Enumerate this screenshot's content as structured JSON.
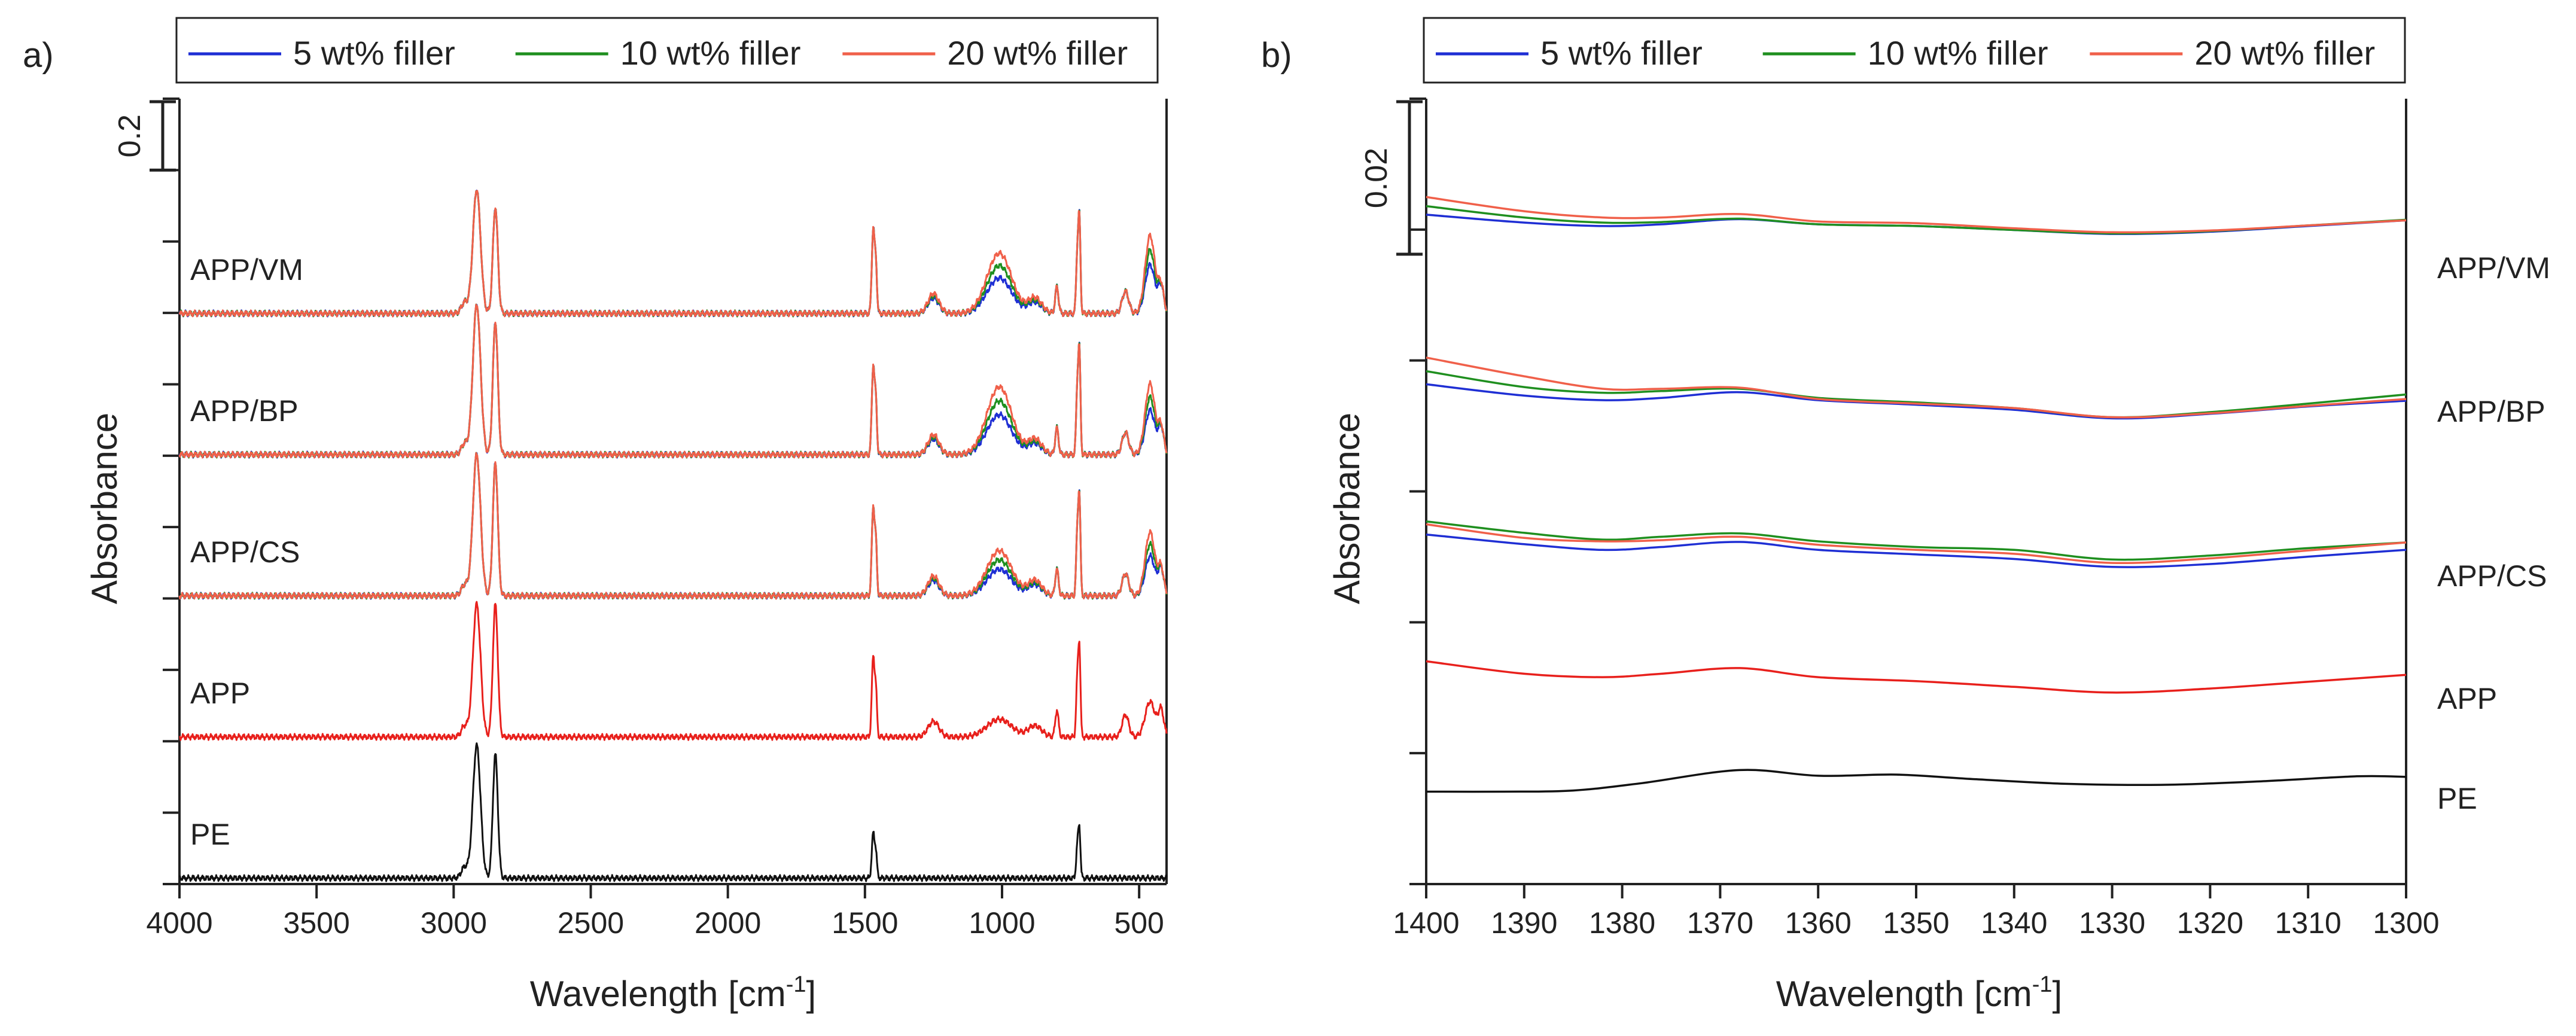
{
  "chart_data": [
    {
      "panel_label": "a)",
      "type": "line",
      "xlabel": "Wavelength [cm",
      "xlabel_sup": "-1",
      "xlabel_close": "]",
      "ylabel": "Absorbance",
      "xlim": [
        4000,
        400
      ],
      "x_ticks": [
        4000,
        3500,
        3000,
        2500,
        2000,
        1500,
        1000,
        500
      ],
      "scale_bar_label": "0.2",
      "y_tick_marks": 11,
      "stacked_offset_spectra": true,
      "legend": {
        "placement": "top",
        "entries": [
          {
            "label": "5 wt% filler",
            "color": "#1f2fd4"
          },
          {
            "label": "10 wt% filler",
            "color": "#1f8f1f"
          },
          {
            "label": "20 wt% filler",
            "color": "#f0604a"
          }
        ]
      },
      "samples": [
        {
          "label": "APP/VM",
          "baseline_level": 4,
          "peaks": {
            "2916": 2.8,
            "2848": 2.4,
            "1470": 1.9,
            "1010": 0.8,
            "720": 2.1,
            "460": 1.1
          }
        },
        {
          "label": "APP/BP",
          "baseline_level": 3,
          "peaks": {
            "2916": 3.4,
            "2848": 3.0,
            "1470": 2.0,
            "1010": 0.9,
            "720": 2.3,
            "460": 1.0
          }
        },
        {
          "label": "APP/CS",
          "baseline_level": 2,
          "peaks": {
            "2916": 3.2,
            "2848": 3.0,
            "1470": 2.0,
            "1010": 0.6,
            "720": 2.2,
            "460": 0.9
          }
        },
        {
          "label": "APP",
          "baseline_level": 1,
          "color": "#e8201c",
          "peaks": {
            "2916": 3.0,
            "2848": 3.0,
            "1470": 1.8,
            "1010": 0.4,
            "720": 2.0,
            "460": 0.8
          }
        },
        {
          "label": "PE",
          "baseline_level": 0,
          "color": "#111111",
          "peaks": {
            "2916": 3.0,
            "2848": 2.8,
            "1470": 1.0,
            "720": 1.1
          }
        }
      ]
    },
    {
      "panel_label": "b)",
      "type": "line",
      "xlabel": "Wavelength [cm",
      "xlabel_sup": "-1",
      "xlabel_close": "]",
      "ylabel": "Absorbance",
      "xlim": [
        1400,
        1300
      ],
      "x_ticks": [
        1400,
        1390,
        1380,
        1370,
        1360,
        1350,
        1340,
        1330,
        1320,
        1310,
        1300
      ],
      "scale_bar_label": "0.02",
      "y_tick_marks": 6,
      "stacked_offset_spectra": true,
      "legend": {
        "placement": "top",
        "entries": [
          {
            "label": "5 wt% filler",
            "color": "#1f2fd4"
          },
          {
            "label": "10 wt% filler",
            "color": "#1f8f1f"
          },
          {
            "label": "20 wt% filler",
            "color": "#f0604a"
          }
        ]
      },
      "samples": [
        {
          "label": "APP/VM",
          "x": [
            1400,
            1390,
            1382,
            1376,
            1368,
            1360,
            1350,
            1340,
            1330,
            1320,
            1310,
            1300
          ],
          "series": [
            {
              "name": "5 wt% filler",
              "values": [
                1.17,
                1.03,
                0.97,
                1.0,
                1.09,
                1.0,
                0.97,
                0.9,
                0.83,
                0.87,
                0.97,
                1.07
              ]
            },
            {
              "name": "10 wt% filler",
              "values": [
                1.32,
                1.12,
                1.03,
                1.04,
                1.1,
                1.0,
                0.97,
                0.9,
                0.84,
                0.88,
                0.98,
                1.08
              ]
            },
            {
              "name": "20 wt% filler",
              "values": [
                1.48,
                1.23,
                1.12,
                1.12,
                1.18,
                1.05,
                1.02,
                0.93,
                0.86,
                0.89,
                0.98,
                1.07
              ]
            }
          ]
        },
        {
          "label": "APP/BP",
          "x": [
            1400,
            1390,
            1382,
            1376,
            1368,
            1360,
            1350,
            1340,
            1330,
            1320,
            1310,
            1300
          ],
          "series": [
            {
              "name": "5 wt% filler",
              "values": [
                1.08,
                0.88,
                0.8,
                0.84,
                0.94,
                0.8,
                0.72,
                0.63,
                0.48,
                0.56,
                0.69,
                0.79
              ]
            },
            {
              "name": "10 wt% filler",
              "values": [
                1.31,
                1.03,
                0.93,
                0.96,
                1.0,
                0.84,
                0.76,
                0.66,
                0.5,
                0.59,
                0.74,
                0.9
              ]
            },
            {
              "name": "20 wt% filler",
              "values": [
                1.55,
                1.22,
                1.0,
                1.0,
                1.02,
                0.82,
                0.74,
                0.66,
                0.5,
                0.57,
                0.7,
                0.82
              ]
            }
          ]
        },
        {
          "label": "APP/CS",
          "x": [
            1400,
            1390,
            1382,
            1376,
            1368,
            1360,
            1350,
            1340,
            1330,
            1320,
            1310,
            1300
          ],
          "series": [
            {
              "name": "5 wt% filler",
              "values": [
                1.12,
                0.95,
                0.85,
                0.9,
                0.99,
                0.85,
                0.77,
                0.69,
                0.55,
                0.6,
                0.73,
                0.85
              ]
            },
            {
              "name": "10 wt% filler",
              "values": [
                1.35,
                1.15,
                1.03,
                1.08,
                1.14,
                1.0,
                0.9,
                0.85,
                0.68,
                0.75,
                0.88,
                0.98
              ]
            },
            {
              "name": "20 wt% filler",
              "values": [
                1.3,
                1.06,
                1.0,
                1.02,
                1.08,
                0.94,
                0.85,
                0.78,
                0.62,
                0.7,
                0.84,
                0.98
              ]
            }
          ]
        },
        {
          "label": "APP",
          "color": "#e8201c",
          "x": [
            1400,
            1390,
            1382,
            1376,
            1368,
            1360,
            1350,
            1340,
            1330,
            1320,
            1310,
            1300
          ],
          "series": [
            {
              "name": "",
              "values": [
                1.1,
                0.88,
                0.82,
                0.88,
                0.98,
                0.82,
                0.75,
                0.65,
                0.55,
                0.62,
                0.74,
                0.86
              ]
            }
          ]
        },
        {
          "label": "PE",
          "color": "#111111",
          "x": [
            1400,
            1392,
            1385,
            1378,
            1368,
            1360,
            1352,
            1345,
            1335,
            1325,
            1315,
            1305,
            1300
          ],
          "series": [
            {
              "name": "",
              "values": [
                0.7,
                0.7,
                0.72,
                0.85,
                1.08,
                0.98,
                1.0,
                0.93,
                0.84,
                0.82,
                0.88,
                0.97,
                0.96
              ]
            }
          ]
        }
      ]
    }
  ]
}
